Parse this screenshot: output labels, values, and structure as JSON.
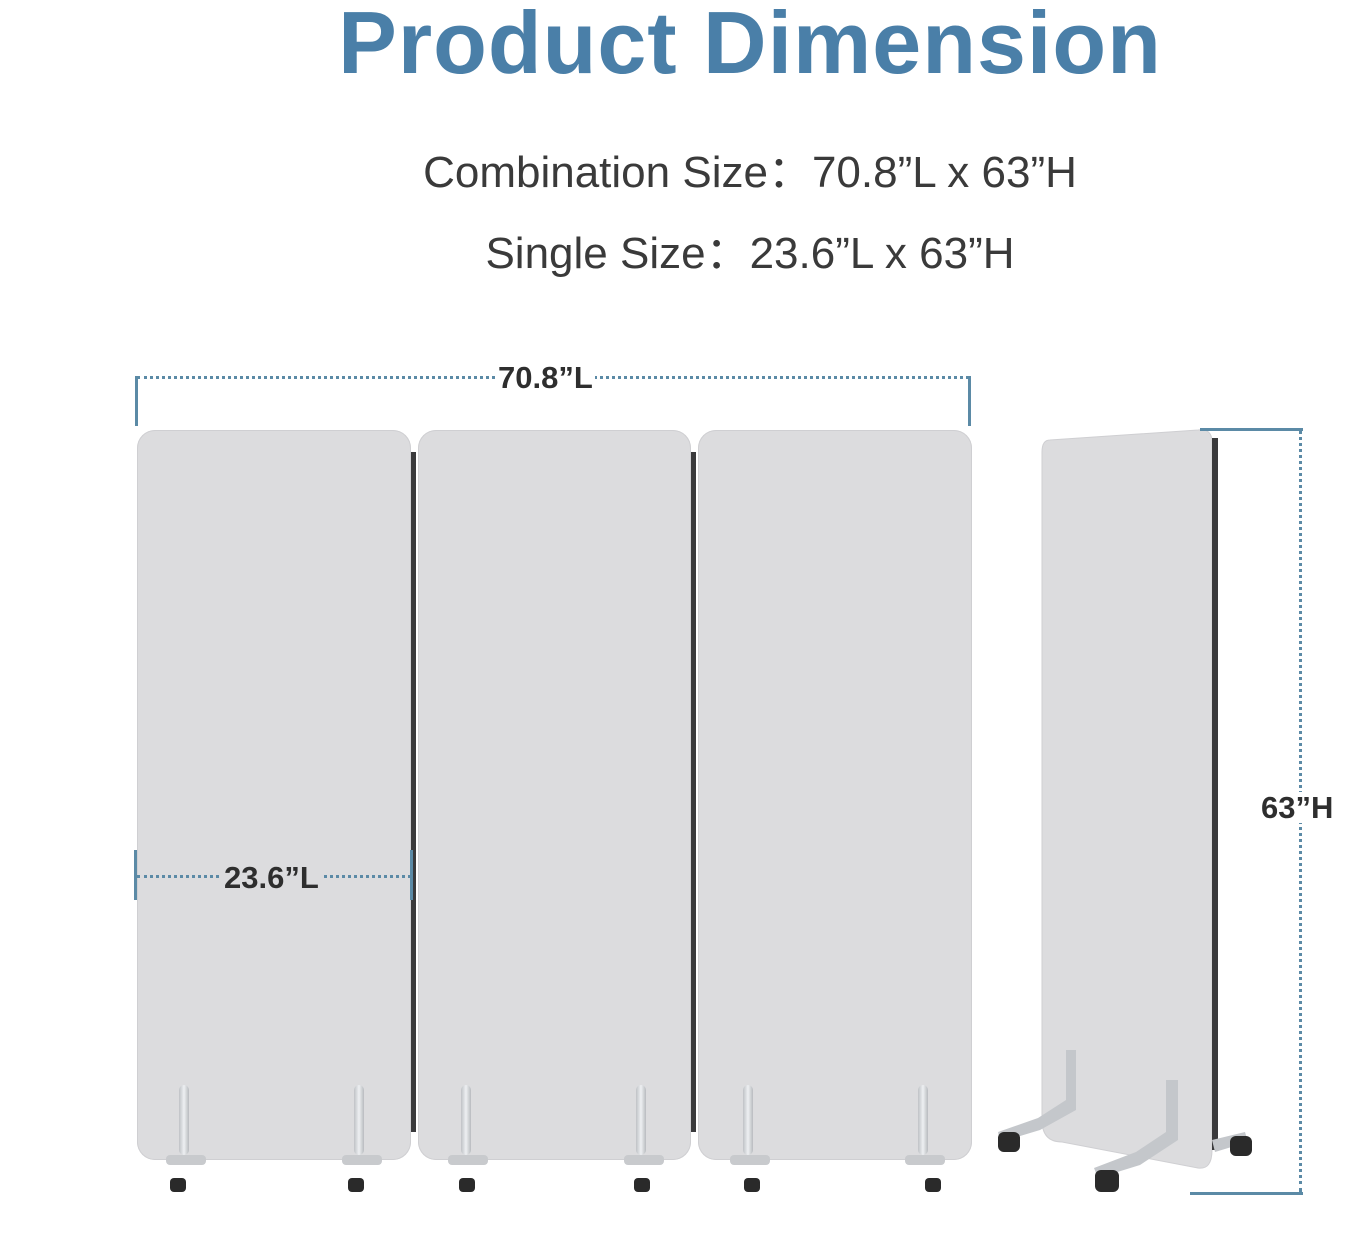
{
  "header": {
    "title": "Product Dimension",
    "combination_size": "Combination Size：70.8”L x 63”H",
    "single_size": "Single Size：23.6”L x 63”H"
  },
  "dimensions": {
    "total_length": "70.8”L",
    "single_length": "23.6”L",
    "height": "63”H"
  },
  "colors": {
    "title": "#4a7fa8",
    "dimension_line": "#5b8aa6",
    "panel": "#dcdcde"
  }
}
